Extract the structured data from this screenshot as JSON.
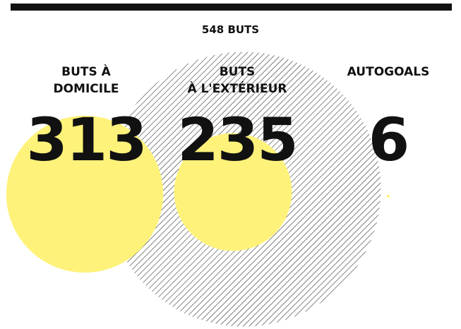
{
  "chart_data": {
    "type": "proportional-circles",
    "total": {
      "value": 548,
      "label": "548 BUTS"
    },
    "categories": [
      "BUTS À\nDOMICILE",
      "BUTS\nÀ L'EXTÉRIEUR",
      "AUTOGOALS"
    ],
    "values": [
      313,
      235,
      6
    ],
    "color": "#fff27a",
    "total_color": "#222222"
  }
}
